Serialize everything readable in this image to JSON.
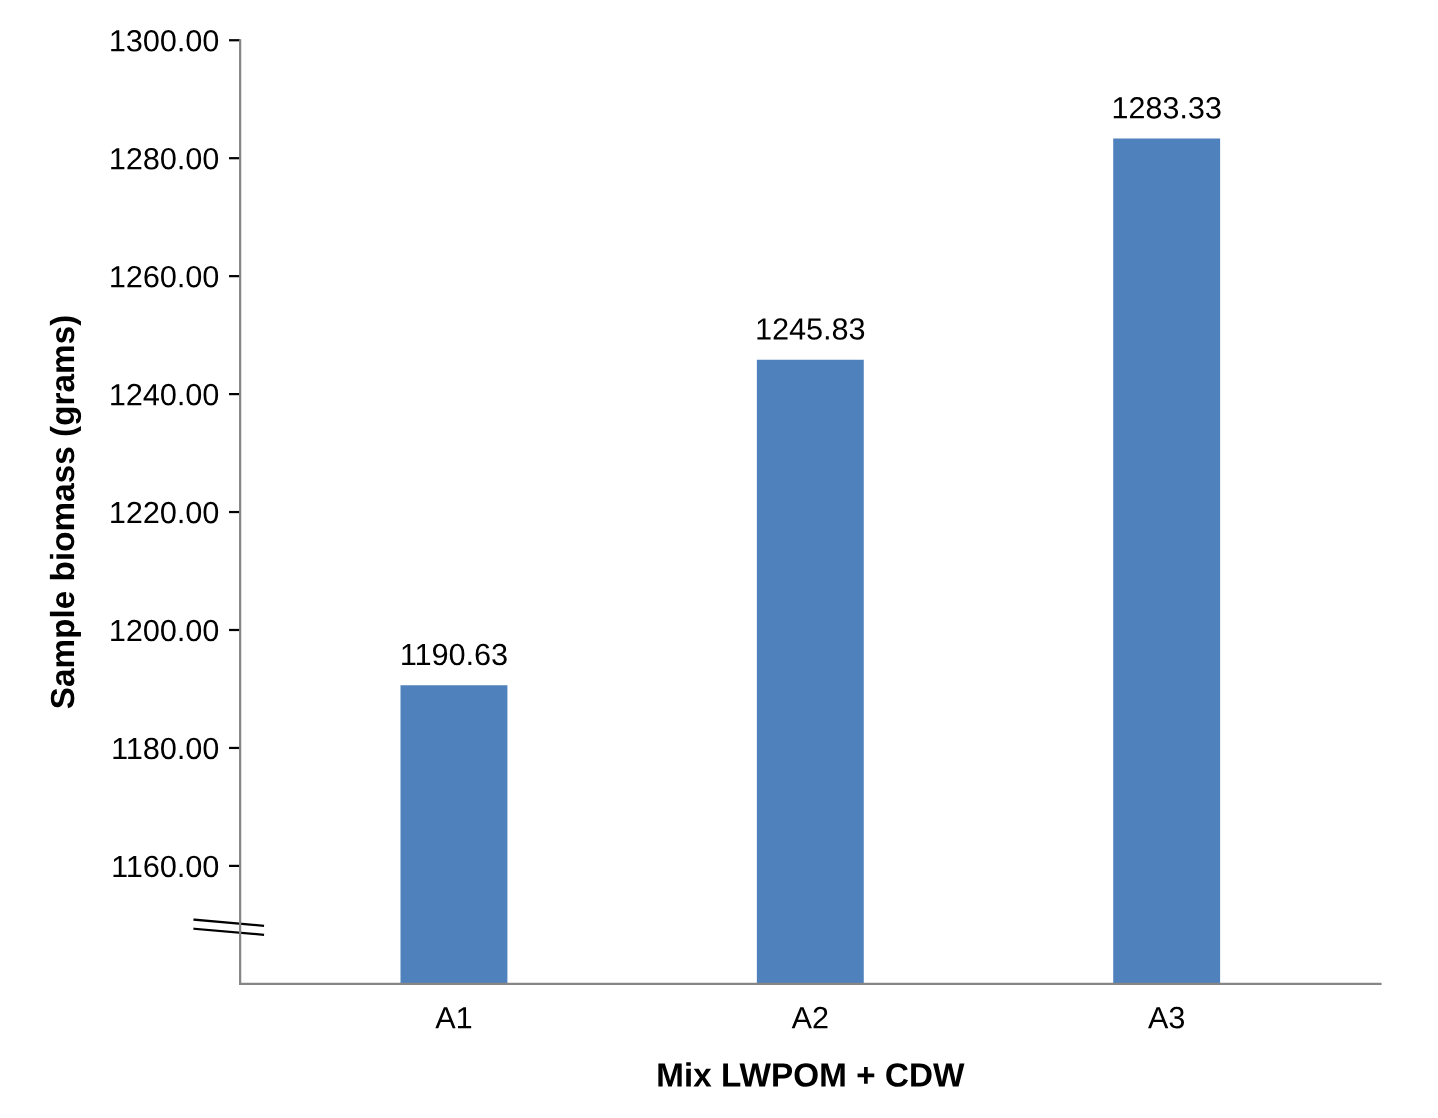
{
  "chart_data": {
    "type": "bar",
    "xlabel": "Mix LWPOM + CDW",
    "ylabel": "Sample biomass (grams)",
    "categories": [
      "A1",
      "A2",
      "A3"
    ],
    "values": [
      1190.63,
      1245.83,
      1283.33
    ],
    "color": "#4f81bd",
    "ylim": [
      1140,
      1300
    ],
    "yticks": [
      {
        "value": 1160,
        "label": "1160.00"
      },
      {
        "value": 1180,
        "label": "1180.00"
      },
      {
        "value": 1200,
        "label": "1200.00"
      },
      {
        "value": 1220,
        "label": "1220.00"
      },
      {
        "value": 1240,
        "label": "1240.00"
      },
      {
        "value": 1260,
        "label": "1260.00"
      },
      {
        "value": 1280,
        "label": "1280.00"
      },
      {
        "value": 1300,
        "label": "1300.00"
      }
    ],
    "data_labels": true,
    "grid": false,
    "legend": false
  }
}
